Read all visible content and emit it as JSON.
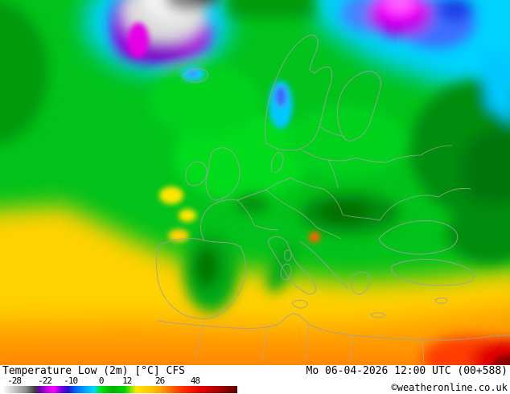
{
  "legend": {
    "title": "Temperature Low (2m) [°C] CFS",
    "unit": "°C",
    "model": "CFS",
    "ticks": [
      {
        "label": "-28",
        "pos": 5
      },
      {
        "label": "-22",
        "pos": 18
      },
      {
        "label": "-10",
        "pos": 29
      },
      {
        "label": "0",
        "pos": 42
      },
      {
        "label": "12",
        "pos": 53
      },
      {
        "label": "26",
        "pos": 67
      },
      {
        "label": "48",
        "pos": 82
      }
    ],
    "gradient": [
      {
        "c": "#ffffff",
        "p": 0
      },
      {
        "c": "#c8c8c8",
        "p": 5
      },
      {
        "c": "#8c8c8c",
        "p": 10
      },
      {
        "c": "#3c3c3c",
        "p": 14
      },
      {
        "c": "#6e00b4",
        "p": 16
      },
      {
        "c": "#c800e6",
        "p": 19
      },
      {
        "c": "#ff00ff",
        "p": 22
      },
      {
        "c": "#7800e6",
        "p": 25
      },
      {
        "c": "#2314cc",
        "p": 28
      },
      {
        "c": "#0064ff",
        "p": 31
      },
      {
        "c": "#00a0ff",
        "p": 35
      },
      {
        "c": "#00d7ff",
        "p": 39
      },
      {
        "c": "#00e10a",
        "p": 42
      },
      {
        "c": "#00b400",
        "p": 47
      },
      {
        "c": "#00d200",
        "p": 52
      },
      {
        "c": "#96e600",
        "p": 55
      },
      {
        "c": "#ffe600",
        "p": 57
      },
      {
        "c": "#ffc800",
        "p": 63
      },
      {
        "c": "#ff9b00",
        "p": 68
      },
      {
        "c": "#ff6400",
        "p": 72
      },
      {
        "c": "#ff2300",
        "p": 78
      },
      {
        "c": "#e10000",
        "p": 85
      },
      {
        "c": "#aa0000",
        "p": 92
      },
      {
        "c": "#5f0000",
        "p": 100
      }
    ]
  },
  "footer": {
    "timestamp": "Mo 06-04-2026 12:00 UTC (00+588)",
    "copyright": "©weatheronline.co.uk"
  },
  "map": {
    "region": "Europe",
    "key_colors": {
      "coldest_gray": "#3c3c3c",
      "very_cold_magenta": "#ff00ff",
      "cold_blue": "#3c6eff",
      "chilly_cyan": "#00d2ff",
      "mild_green": "#00c21a",
      "warm_yellow": "#ffd200",
      "hot_orange": "#ff9b00",
      "hottest_red": "#e10000"
    }
  }
}
